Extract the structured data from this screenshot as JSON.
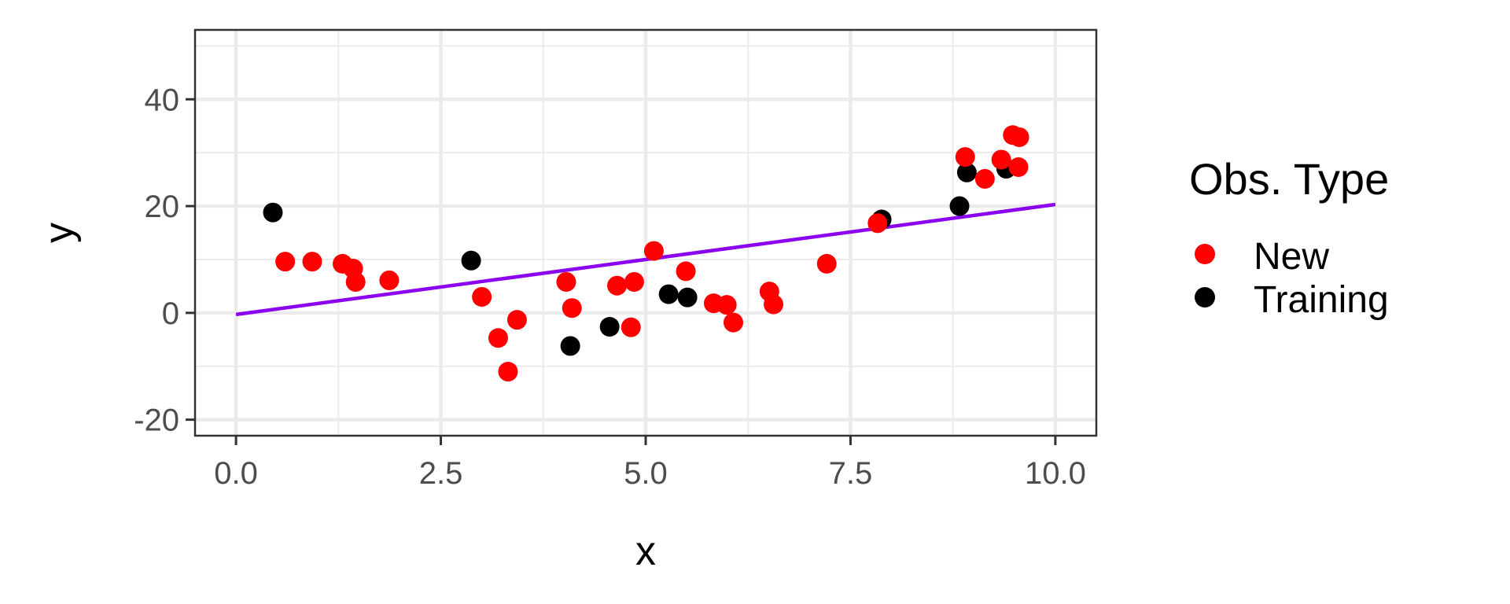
{
  "chart_data": {
    "type": "scatter",
    "title": "",
    "xlabel": "x",
    "ylabel": "y",
    "xlim": [
      -0.5,
      10.5
    ],
    "ylim": [
      -23,
      53
    ],
    "x_ticks": [
      0.0,
      2.5,
      5.0,
      7.5,
      10.0
    ],
    "x_tick_labels": [
      "0.0",
      "2.5",
      "5.0",
      "7.5",
      "10.0"
    ],
    "y_ticks": [
      -20,
      0,
      20,
      40
    ],
    "y_tick_labels": [
      "-20",
      "0",
      "20",
      "40"
    ],
    "grid": true,
    "legend": {
      "title": "Obs. Type",
      "position": "right",
      "entries": [
        "New",
        "Training"
      ]
    },
    "colors": {
      "New": "#ff0000",
      "Training": "#000000",
      "fit_line": "#8b00ee",
      "grid": "#ebebeb",
      "panel_border": "#333333"
    },
    "fit_line": {
      "x": [
        0,
        10
      ],
      "y": [
        -0.3,
        20.3
      ]
    },
    "series": [
      {
        "name": "Training",
        "points": [
          [
            0.45,
            18.8
          ],
          [
            2.87,
            9.8
          ],
          [
            4.08,
            -6.2
          ],
          [
            4.56,
            -2.6
          ],
          [
            5.28,
            3.5
          ],
          [
            5.51,
            2.9
          ],
          [
            7.88,
            17.5
          ],
          [
            8.83,
            20.0
          ],
          [
            8.92,
            26.3
          ],
          [
            9.4,
            27.0
          ]
        ]
      },
      {
        "name": "New",
        "points": [
          [
            0.6,
            9.6
          ],
          [
            0.93,
            9.6
          ],
          [
            1.3,
            9.2
          ],
          [
            1.43,
            8.3
          ],
          [
            1.46,
            5.8
          ],
          [
            1.87,
            6.1
          ],
          [
            3.0,
            3.0
          ],
          [
            3.2,
            -4.7
          ],
          [
            3.32,
            -11.0
          ],
          [
            3.43,
            -1.3
          ],
          [
            4.03,
            5.8
          ],
          [
            4.1,
            0.9
          ],
          [
            4.65,
            5.1
          ],
          [
            4.82,
            -2.7
          ],
          [
            4.86,
            5.8
          ],
          [
            5.1,
            11.6
          ],
          [
            5.49,
            7.8
          ],
          [
            5.83,
            1.8
          ],
          [
            5.99,
            1.5
          ],
          [
            6.07,
            -1.8
          ],
          [
            6.51,
            4.0
          ],
          [
            6.56,
            1.6
          ],
          [
            7.21,
            9.2
          ],
          [
            7.83,
            16.8
          ],
          [
            8.9,
            29.2
          ],
          [
            9.14,
            25.1
          ],
          [
            9.34,
            28.7
          ],
          [
            9.48,
            33.3
          ],
          [
            9.55,
            27.3
          ],
          [
            9.56,
            32.9
          ]
        ]
      }
    ]
  }
}
